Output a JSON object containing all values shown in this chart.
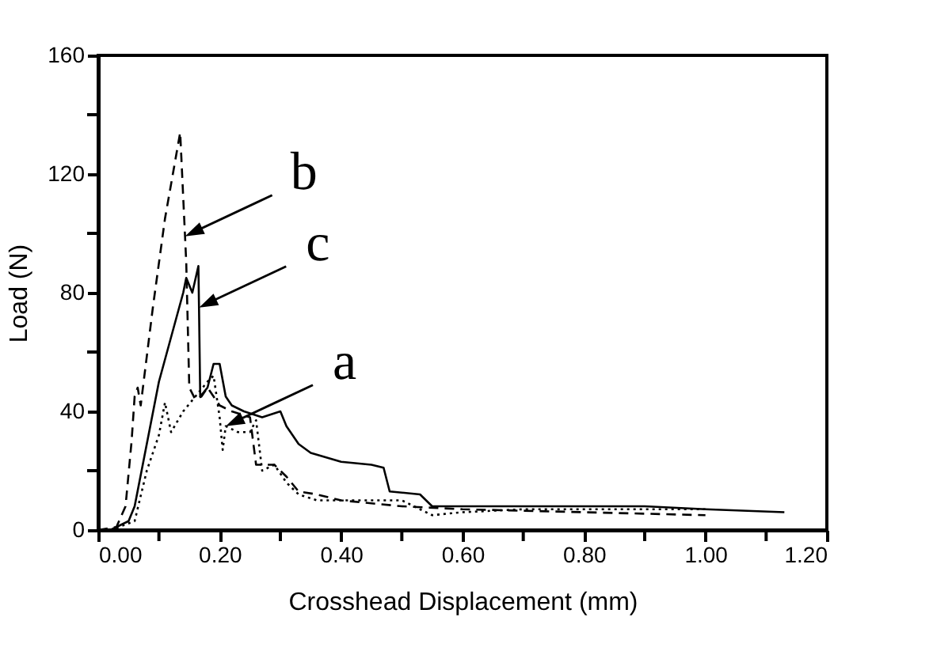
{
  "chart_data": {
    "type": "line",
    "xlabel": "Crosshead Displacement (mm)",
    "ylabel": "Load (N)",
    "xlim": [
      0,
      1.2
    ],
    "ylim": [
      0,
      160
    ],
    "xticks": [
      {
        "value": 0,
        "label": "0.00"
      },
      {
        "value": 0.1,
        "label": null
      },
      {
        "value": 0.2,
        "label": "0.20"
      },
      {
        "value": 0.3,
        "label": null
      },
      {
        "value": 0.4,
        "label": "0.40"
      },
      {
        "value": 0.5,
        "label": null
      },
      {
        "value": 0.6,
        "label": "0.60"
      },
      {
        "value": 0.7,
        "label": null
      },
      {
        "value": 0.8,
        "label": "0.80"
      },
      {
        "value": 0.9,
        "label": null
      },
      {
        "value": 1,
        "label": "1.00"
      },
      {
        "value": 1.1,
        "label": null
      },
      {
        "value": 1.2,
        "label": "1.20"
      }
    ],
    "yticks": [
      0,
      {
        "value": 20,
        "label": null
      },
      40,
      {
        "value": 60,
        "label": null
      },
      80,
      {
        "value": 100,
        "label": null
      },
      120,
      {
        "value": 140,
        "label": null
      },
      160
    ],
    "grid": false,
    "marker": "none",
    "series": [
      {
        "color": "#000000",
        "line_style": "dotted",
        "x": [
          0.02,
          0.06,
          0.08,
          0.1,
          0.11,
          0.12,
          0.14,
          0.16,
          0.18,
          0.19,
          0.2,
          0.205,
          0.21,
          0.23,
          0.25,
          0.26,
          0.27,
          0.29,
          0.31,
          0.33,
          0.36,
          0.4,
          0.5,
          0.55,
          0.6,
          0.7,
          0.8,
          0.9,
          1.0
        ],
        "values": [
          0,
          3,
          20,
          32,
          43,
          33,
          40,
          45,
          50,
          52,
          38,
          27,
          35,
          33,
          33,
          37,
          20,
          22,
          16,
          12,
          10,
          10,
          10,
          5,
          6,
          7,
          7,
          7,
          7
        ]
      },
      {
        "color": "#000000",
        "line_style": "dashed",
        "x": [
          0,
          0.03,
          0.045,
          0.055,
          0.06,
          0.065,
          0.07,
          0.09,
          0.11,
          0.135,
          0.143,
          0.145,
          0.15,
          0.16,
          0.17,
          0.18,
          0.2,
          0.22,
          0.25,
          0.26,
          0.29,
          0.31,
          0.33,
          0.36,
          0.4,
          0.45,
          0.5,
          0.6,
          0.8,
          1.0
        ],
        "values": [
          0,
          1,
          8,
          30,
          45,
          48,
          42,
          75,
          105,
          134,
          99,
          90,
          48,
          44,
          45,
          48,
          42,
          40,
          38,
          22,
          22,
          18,
          13,
          12,
          10,
          9,
          8,
          7,
          6,
          5
        ]
      },
      {
        "color": "#000000",
        "line_style": "solid",
        "x": [
          0.02,
          0.05,
          0.06,
          0.1,
          0.14,
          0.145,
          0.155,
          0.165,
          0.166,
          0.168,
          0.18,
          0.19,
          0.2,
          0.21,
          0.22,
          0.24,
          0.27,
          0.3,
          0.31,
          0.33,
          0.35,
          0.4,
          0.45,
          0.47,
          0.48,
          0.53,
          0.54,
          0.55,
          0.7,
          0.9,
          1.0,
          1.13
        ],
        "values": [
          0,
          3,
          8,
          50,
          80,
          85,
          80,
          89,
          75,
          45,
          48,
          56,
          56,
          45,
          42,
          40,
          38,
          40,
          35,
          29,
          26,
          23,
          22,
          21,
          13,
          12,
          10,
          8,
          8,
          8,
          7,
          6
        ]
      }
    ],
    "annotations": [
      {
        "text": "b",
        "x": 0.143,
        "y": 99
      },
      {
        "text": "c",
        "x": 0.166,
        "y": 75
      },
      {
        "text": "a",
        "x": 0.21,
        "y": 35
      }
    ]
  }
}
